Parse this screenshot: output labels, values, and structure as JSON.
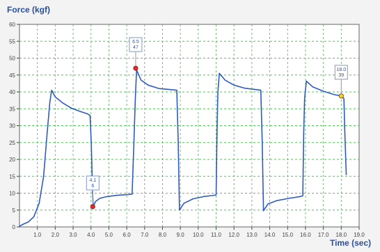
{
  "chart_data": {
    "type": "line",
    "y_axis_title": "Force (kgf)",
    "x_axis_title": "Time (sec)",
    "y_range": [
      0,
      60
    ],
    "x_range": [
      0,
      19
    ],
    "grid": true,
    "y_ticks": [
      {
        "value": 0,
        "label": "0"
      },
      {
        "value": 5,
        "label": "5"
      },
      {
        "value": 10,
        "label": "10"
      },
      {
        "value": 15,
        "label": "15"
      },
      {
        "value": 20,
        "label": "20"
      },
      {
        "value": 25,
        "label": "25"
      },
      {
        "value": 30,
        "label": "30"
      },
      {
        "value": 35,
        "label": "35"
      },
      {
        "value": 40,
        "label": "40"
      },
      {
        "value": 45,
        "label": "45"
      },
      {
        "value": 50,
        "label": "50"
      },
      {
        "value": 55,
        "label": "55"
      },
      {
        "value": 60,
        "label": "60"
      }
    ],
    "x_ticks": [
      {
        "value": 1,
        "label": "1.0"
      },
      {
        "value": 2,
        "label": "2.0"
      },
      {
        "value": 3,
        "label": "3.0"
      },
      {
        "value": 4,
        "label": "4.0"
      },
      {
        "value": 5,
        "label": "5.0"
      },
      {
        "value": 6,
        "label": "6.0"
      },
      {
        "value": 7,
        "label": "7.0"
      },
      {
        "value": 8,
        "label": "8.0"
      },
      {
        "value": 9,
        "label": "9.0"
      },
      {
        "value": 10,
        "label": "10.0"
      },
      {
        "value": 11,
        "label": "11.0"
      },
      {
        "value": 12,
        "label": "12.0"
      },
      {
        "value": 13,
        "label": "13.0"
      },
      {
        "value": 14,
        "label": "14.0"
      },
      {
        "value": 15,
        "label": "15.0"
      },
      {
        "value": 16,
        "label": "16.0"
      },
      {
        "value": 17,
        "label": "17.0"
      },
      {
        "value": 18,
        "label": "18.0"
      },
      {
        "value": 19,
        "label": "19.0"
      }
    ],
    "series": [
      {
        "points": [
          [
            0.0,
            0.2
          ],
          [
            0.2,
            0.8
          ],
          [
            0.5,
            1.5
          ],
          [
            0.8,
            3.0
          ],
          [
            1.1,
            7.0
          ],
          [
            1.35,
            15.0
          ],
          [
            1.55,
            28.0
          ],
          [
            1.7,
            37.0
          ],
          [
            1.8,
            40.5
          ],
          [
            2.0,
            38.5
          ],
          [
            2.4,
            36.8
          ],
          [
            2.9,
            35.2
          ],
          [
            3.4,
            34.2
          ],
          [
            3.8,
            33.5
          ],
          [
            3.95,
            33.0
          ],
          [
            4.02,
            24.0
          ],
          [
            4.08,
            12.0
          ],
          [
            4.12,
            6.0
          ],
          [
            4.25,
            7.5
          ],
          [
            4.5,
            8.5
          ],
          [
            4.9,
            9.0
          ],
          [
            5.5,
            9.4
          ],
          [
            6.1,
            9.6
          ],
          [
            6.3,
            9.7
          ],
          [
            6.4,
            25.0
          ],
          [
            6.48,
            38.0
          ],
          [
            6.55,
            46.5
          ],
          [
            6.8,
            43.5
          ],
          [
            7.2,
            42.0
          ],
          [
            7.8,
            41.0
          ],
          [
            8.4,
            40.7
          ],
          [
            8.8,
            40.5
          ],
          [
            8.88,
            25.0
          ],
          [
            8.95,
            5.0
          ],
          [
            9.2,
            7.0
          ],
          [
            9.7,
            8.3
          ],
          [
            10.3,
            9.0
          ],
          [
            10.8,
            9.3
          ],
          [
            11.0,
            9.5
          ],
          [
            11.05,
            28.0
          ],
          [
            11.1,
            40.0
          ],
          [
            11.18,
            45.5
          ],
          [
            11.5,
            43.5
          ],
          [
            12.0,
            42.0
          ],
          [
            12.6,
            41.1
          ],
          [
            13.2,
            40.7
          ],
          [
            13.5,
            40.5
          ],
          [
            13.58,
            25.0
          ],
          [
            13.65,
            4.8
          ],
          [
            13.9,
            6.8
          ],
          [
            14.4,
            7.8
          ],
          [
            15.0,
            8.4
          ],
          [
            15.6,
            8.9
          ],
          [
            15.85,
            9.2
          ],
          [
            15.9,
            28.0
          ],
          [
            15.95,
            38.0
          ],
          [
            16.05,
            43.2
          ],
          [
            16.4,
            41.5
          ],
          [
            17.0,
            40.2
          ],
          [
            17.6,
            39.2
          ],
          [
            18.0,
            38.8
          ],
          [
            18.15,
            38.0
          ],
          [
            18.2,
            28.0
          ],
          [
            18.28,
            15.5
          ]
        ]
      }
    ],
    "annotations": [
      {
        "x": 4.1,
        "y": 6,
        "lines": [
          "4.1",
          "6"
        ],
        "marker_color": "#e02a2a"
      },
      {
        "x": 6.5,
        "y": 47,
        "lines": [
          "6.5",
          "47"
        ],
        "marker_color": "#e02a2a"
      },
      {
        "x": 18.0,
        "y": 38.8,
        "lines": [
          "18.0",
          "39"
        ],
        "marker_color": "#e5d728"
      }
    ],
    "colors": {
      "series": "#2e5bc0",
      "grid": "#56c15b",
      "axis": "#444444",
      "plot_background": "#ffffff",
      "label_box_border": "#7e99c7",
      "label_text": "#3453a8"
    }
  }
}
